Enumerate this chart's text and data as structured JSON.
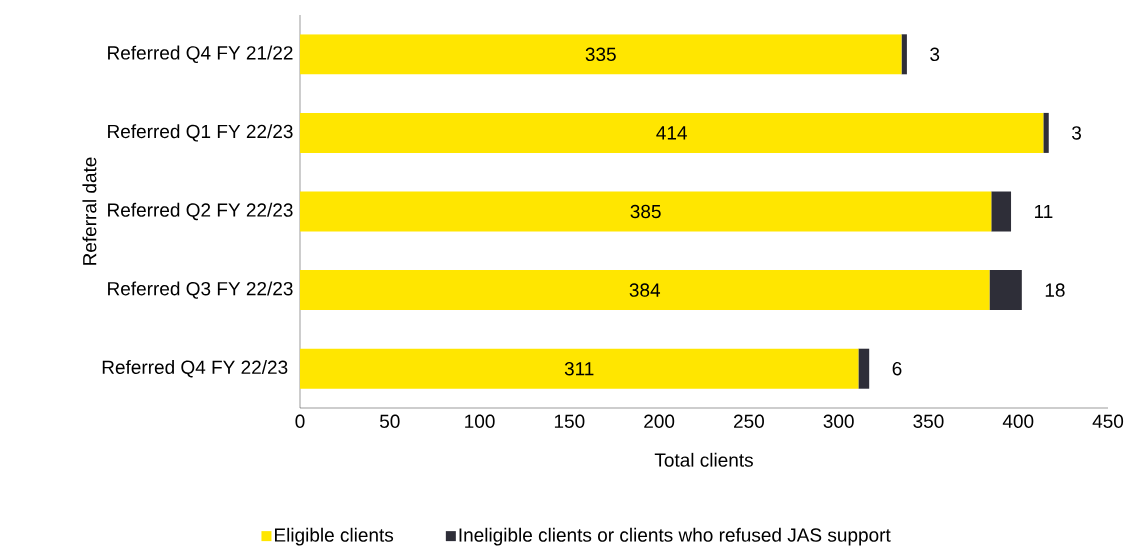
{
  "chart_data": {
    "type": "bar",
    "orientation": "horizontal",
    "stacked": true,
    "xlabel": "Total clients",
    "ylabel": "Referral date",
    "categories": [
      "Referred Q4 FY 21/22",
      "Referred Q1 FY 22/23",
      "Referred Q2 FY 22/23",
      "Referred Q3 FY 22/23",
      "Referred Q4 FY 22/23 "
    ],
    "series": [
      {
        "name": "Eligible clients",
        "color": "#ffe600",
        "values": [
          335,
          414,
          385,
          384,
          311
        ]
      },
      {
        "name": "Ineligible clients or clients who refused JAS support",
        "color": "#2e2e38",
        "values": [
          3,
          3,
          11,
          18,
          6
        ]
      }
    ],
    "xlim": [
      0,
      450
    ],
    "xticks": [
      0,
      50,
      100,
      150,
      200,
      250,
      300,
      350,
      400,
      450
    ],
    "data_labels": true,
    "legend": "bottom",
    "grid": false
  }
}
